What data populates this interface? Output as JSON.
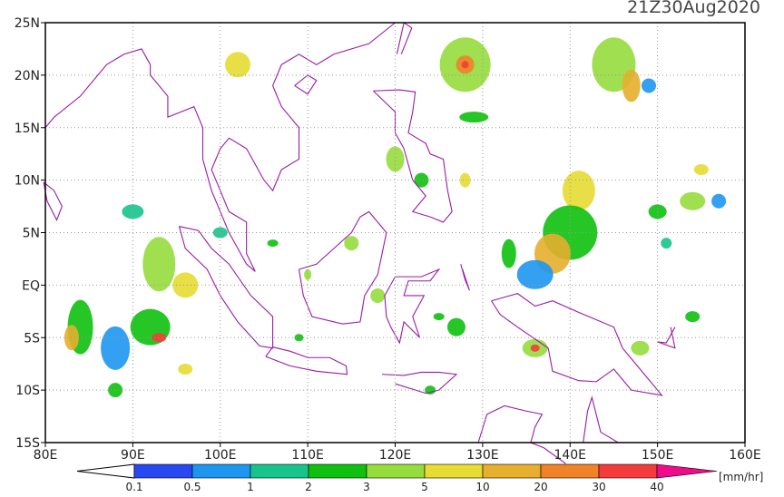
{
  "title": "21Z30Aug2020",
  "map": {
    "lat_labels": [
      {
        "value": 25,
        "label": "25N"
      },
      {
        "value": 20,
        "label": "20N"
      },
      {
        "value": 15,
        "label": "15N"
      },
      {
        "value": 10,
        "label": "10N"
      },
      {
        "value": 5,
        "label": "5N"
      },
      {
        "value": 0,
        "label": "EQ"
      },
      {
        "value": -5,
        "label": "5S"
      },
      {
        "value": -10,
        "label": "10S"
      },
      {
        "value": -15,
        "label": "15S"
      }
    ],
    "lon_labels": [
      {
        "value": 80,
        "label": "80E"
      },
      {
        "value": 90,
        "label": "90E"
      },
      {
        "value": 100,
        "label": "100E"
      },
      {
        "value": 110,
        "label": "110E"
      },
      {
        "value": 120,
        "label": "120E"
      },
      {
        "value": 130,
        "label": "130E"
      },
      {
        "value": 140,
        "label": "140E"
      },
      {
        "value": 150,
        "label": "150E"
      },
      {
        "value": 160,
        "label": "160E"
      }
    ]
  },
  "colorbar": {
    "levels": [
      "0.1",
      "0.5",
      "1",
      "2",
      "3",
      "5",
      "10",
      "20",
      "30",
      "40"
    ],
    "colors": [
      "#2a48f0",
      "#1e96f0",
      "#16c48c",
      "#10c010",
      "#96dc3c",
      "#e6dc32",
      "#e6af2d",
      "#f08228",
      "#f53c3c",
      "#f00a8c"
    ],
    "unit": "[mm/hr]"
  }
}
